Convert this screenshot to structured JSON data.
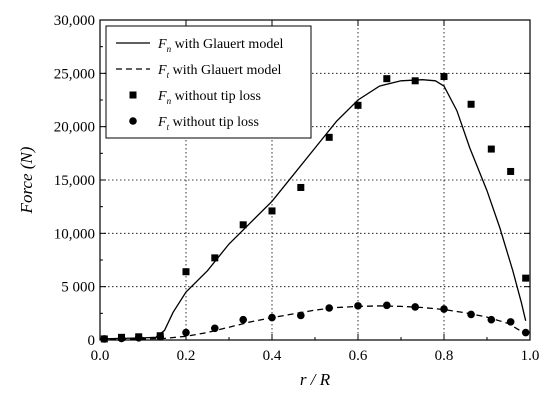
{
  "chart_data": {
    "type": "line",
    "xlabel": "r / R",
    "ylabel": "Force (N)",
    "xlim": [
      0.0,
      1.0
    ],
    "ylim": [
      0,
      30000
    ],
    "x_ticks": [
      {
        "value": 0.0,
        "label": "0.0"
      },
      {
        "value": 0.2,
        "label": "0.2"
      },
      {
        "value": 0.4,
        "label": "0.4"
      },
      {
        "value": 0.6,
        "label": "0.6"
      },
      {
        "value": 0.8,
        "label": "0.8"
      },
      {
        "value": 1.0,
        "label": "1.0"
      }
    ],
    "y_ticks": [
      {
        "value": 0,
        "label": "0"
      },
      {
        "value": 5000,
        "label": "5 000"
      },
      {
        "value": 10000,
        "label": "10,000"
      },
      {
        "value": 15000,
        "label": "15,000"
      },
      {
        "value": 20000,
        "label": "20,000"
      },
      {
        "value": 25000,
        "label": "25,000"
      },
      {
        "value": 30000,
        "label": "30,000"
      }
    ],
    "grid": "dotted, at major ticks",
    "legend_position": "top-left",
    "series": [
      {
        "name": "Fn with Glauert model",
        "symbol": "F",
        "subscript": "n",
        "label_text": "with Glauert model",
        "style": "solid-line",
        "x": [
          0.0,
          0.05,
          0.1,
          0.13,
          0.15,
          0.17,
          0.2,
          0.25,
          0.3,
          0.35,
          0.4,
          0.45,
          0.5,
          0.55,
          0.6,
          0.65,
          0.7,
          0.75,
          0.78,
          0.8,
          0.83,
          0.86,
          0.9,
          0.93,
          0.96,
          0.98,
          0.99
        ],
        "y": [
          100,
          150,
          200,
          250,
          900,
          2600,
          4500,
          6500,
          9000,
          11000,
          13000,
          15500,
          18000,
          20500,
          22500,
          23800,
          24300,
          24400,
          24300,
          23800,
          21500,
          18000,
          14000,
          10500,
          6500,
          3500,
          1800
        ]
      },
      {
        "name": "Ft with Glauert model",
        "symbol": "F",
        "subscript": "t",
        "label_text": "with Glauert model",
        "style": "dashed-line",
        "x": [
          0.0,
          0.05,
          0.1,
          0.15,
          0.2,
          0.25,
          0.3,
          0.35,
          0.4,
          0.45,
          0.5,
          0.55,
          0.6,
          0.65,
          0.7,
          0.75,
          0.8,
          0.85,
          0.9,
          0.95,
          0.99
        ],
        "y": [
          50,
          80,
          100,
          150,
          350,
          700,
          1200,
          1700,
          2100,
          2450,
          2800,
          3050,
          3150,
          3200,
          3150,
          3050,
          2850,
          2550,
          2150,
          1550,
          550
        ]
      },
      {
        "name": "Fn without tip loss",
        "symbol": "F",
        "subscript": "n",
        "label_text": "without tip loss",
        "style": "square-markers",
        "x": [
          0.01,
          0.05,
          0.09,
          0.14,
          0.2,
          0.267,
          0.333,
          0.4,
          0.467,
          0.533,
          0.6,
          0.667,
          0.733,
          0.8,
          0.863,
          0.91,
          0.955,
          0.99
        ],
        "y": [
          100,
          250,
          300,
          400,
          6400,
          7700,
          10800,
          12100,
          14300,
          19000,
          22000,
          24500,
          24300,
          24700,
          22100,
          17900,
          15800,
          5800
        ]
      },
      {
        "name": "Ft without tip loss",
        "symbol": "F",
        "subscript": "t",
        "label_text": "without tip loss",
        "style": "circle-markers",
        "x": [
          0.01,
          0.05,
          0.09,
          0.14,
          0.2,
          0.267,
          0.333,
          0.4,
          0.467,
          0.533,
          0.6,
          0.667,
          0.733,
          0.8,
          0.863,
          0.91,
          0.955,
          0.99
        ],
        "y": [
          100,
          150,
          200,
          300,
          700,
          1100,
          1900,
          2100,
          2300,
          3000,
          3200,
          3250,
          3100,
          2900,
          2400,
          1900,
          1700,
          700
        ]
      }
    ]
  }
}
